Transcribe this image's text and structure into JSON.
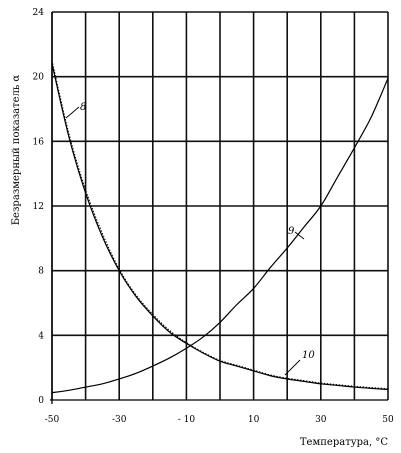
{
  "chart_data": {
    "type": "line",
    "xlabel": "Температура, °С",
    "ylabel": "Безразмерный показатель α",
    "xlim": [
      -50,
      50
    ],
    "ylim": [
      0,
      24
    ],
    "x_ticks": [
      -50,
      -30,
      -10,
      10,
      30,
      50
    ],
    "y_ticks": [
      0,
      4,
      8,
      12,
      16,
      20,
      24
    ],
    "grid": true,
    "series": [
      {
        "name": "8",
        "x": [
          -50,
          -45,
          -40,
          -35,
          -30,
          -25,
          -20,
          -15,
          -10,
          -5,
          0,
          5,
          10,
          15,
          20,
          25,
          30,
          35,
          40,
          45,
          50
        ],
        "y": [
          20.8,
          16.3,
          12.8,
          10.1,
          8.0,
          6.4,
          5.2,
          4.2,
          3.5,
          2.9,
          2.4,
          2.1,
          1.8,
          1.5,
          1.3,
          1.15,
          1.0,
          0.9,
          0.8,
          0.72,
          0.65
        ]
      },
      {
        "name": "9",
        "x": [
          -50,
          -45,
          -40,
          -35,
          -30,
          -25,
          -20,
          -15,
          -10,
          -5,
          0,
          5,
          10,
          15,
          20,
          25,
          30,
          35,
          40,
          45,
          50
        ],
        "y": [
          0.45,
          0.6,
          0.8,
          1.0,
          1.3,
          1.65,
          2.1,
          2.6,
          3.2,
          3.9,
          4.8,
          5.9,
          6.9,
          8.2,
          9.4,
          10.7,
          12.0,
          13.8,
          15.6,
          17.5,
          19.9
        ]
      },
      {
        "name": "10",
        "x": [
          -50,
          -45,
          -40,
          -35,
          -30,
          -25,
          -20,
          -15,
          -10,
          -5,
          0,
          5,
          10,
          15,
          20,
          25,
          30,
          35,
          40,
          45,
          50
        ],
        "y": [
          21.0,
          16.5,
          13.0,
          10.3,
          8.1,
          6.5,
          5.3,
          4.3,
          3.55,
          2.95,
          2.45,
          2.15,
          1.85,
          1.55,
          1.35,
          1.2,
          1.05,
          0.95,
          0.85,
          0.77,
          0.7
        ]
      }
    ]
  }
}
